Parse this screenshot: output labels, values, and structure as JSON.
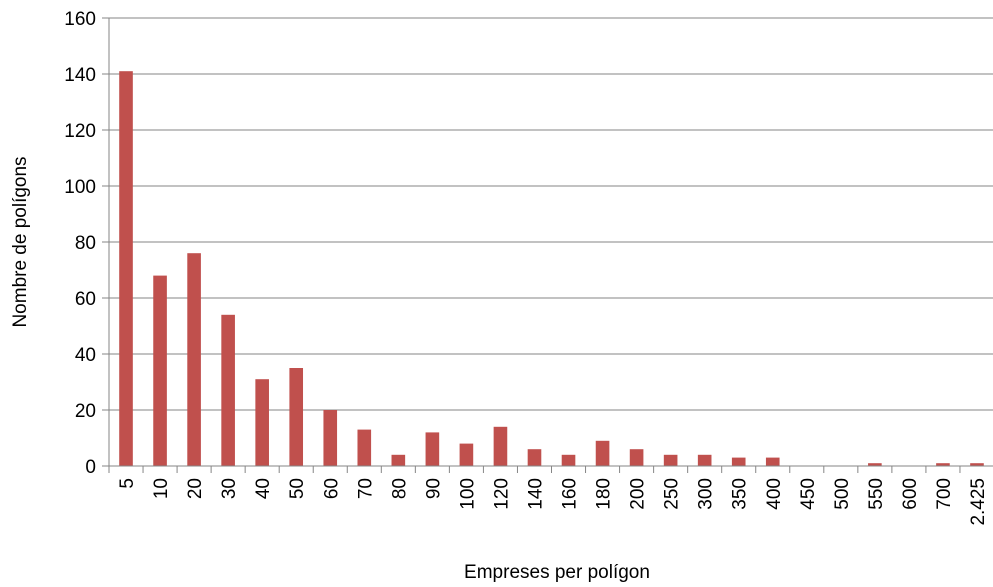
{
  "chart_data": {
    "type": "bar",
    "title": "",
    "xlabel": "Empreses per polígon",
    "ylabel": "Nombre de polígons",
    "ylim": [
      0,
      160
    ],
    "yticks": [
      "0",
      "20",
      "40",
      "60",
      "80",
      "100",
      "120",
      "140",
      "160"
    ],
    "grid": true,
    "legend": "none",
    "bar_color": "#C0504D",
    "categories": [
      "5",
      "10",
      "20",
      "30",
      "40",
      "50",
      "60",
      "70",
      "80",
      "90",
      "100",
      "120",
      "140",
      "160",
      "180",
      "200",
      "250",
      "300",
      "350",
      "400",
      "450",
      "500",
      "550",
      "600",
      "700",
      "2.425"
    ],
    "values": [
      141,
      68,
      76,
      54,
      31,
      35,
      20,
      13,
      4,
      12,
      8,
      14,
      6,
      4,
      9,
      6,
      4,
      4,
      3,
      3,
      0,
      0,
      1,
      0,
      1,
      1
    ]
  }
}
